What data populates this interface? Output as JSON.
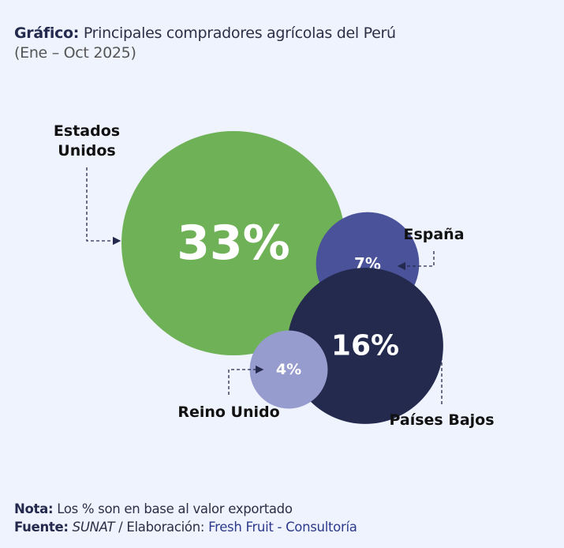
{
  "title": {
    "prefix": "Gráfico:",
    "text": " Principales compradores agrícolas del Perú",
    "period": "(Ene – Oct 2025)"
  },
  "chart_data": {
    "type": "bubble",
    "title": "Principales compradores agrícolas del Perú (Ene – Oct 2025)",
    "unit": "%",
    "points": [
      {
        "label": [
          "Estados",
          "Unidos"
        ],
        "value": 33,
        "display": "33%",
        "color": "#6fb157"
      },
      {
        "label": [
          "España"
        ],
        "value": 7,
        "display": "7%",
        "color": "#4a5299"
      },
      {
        "label": [
          "Países Bajos"
        ],
        "value": 16,
        "display": "16%",
        "color": "#232a4e"
      },
      {
        "label": [
          "Reino Unido"
        ],
        "value": 4,
        "display": "4%",
        "color": "#979cce"
      }
    ]
  },
  "footer": {
    "nota_label": "Nota:",
    "nota_text": " Los % son en base al valor exportado",
    "fuente_label": "Fuente:",
    "fuente_source": " SUNAT",
    "fuente_sep": " / Elaboración: ",
    "fuente_author": "Fresh Fruit - Consultoría"
  }
}
